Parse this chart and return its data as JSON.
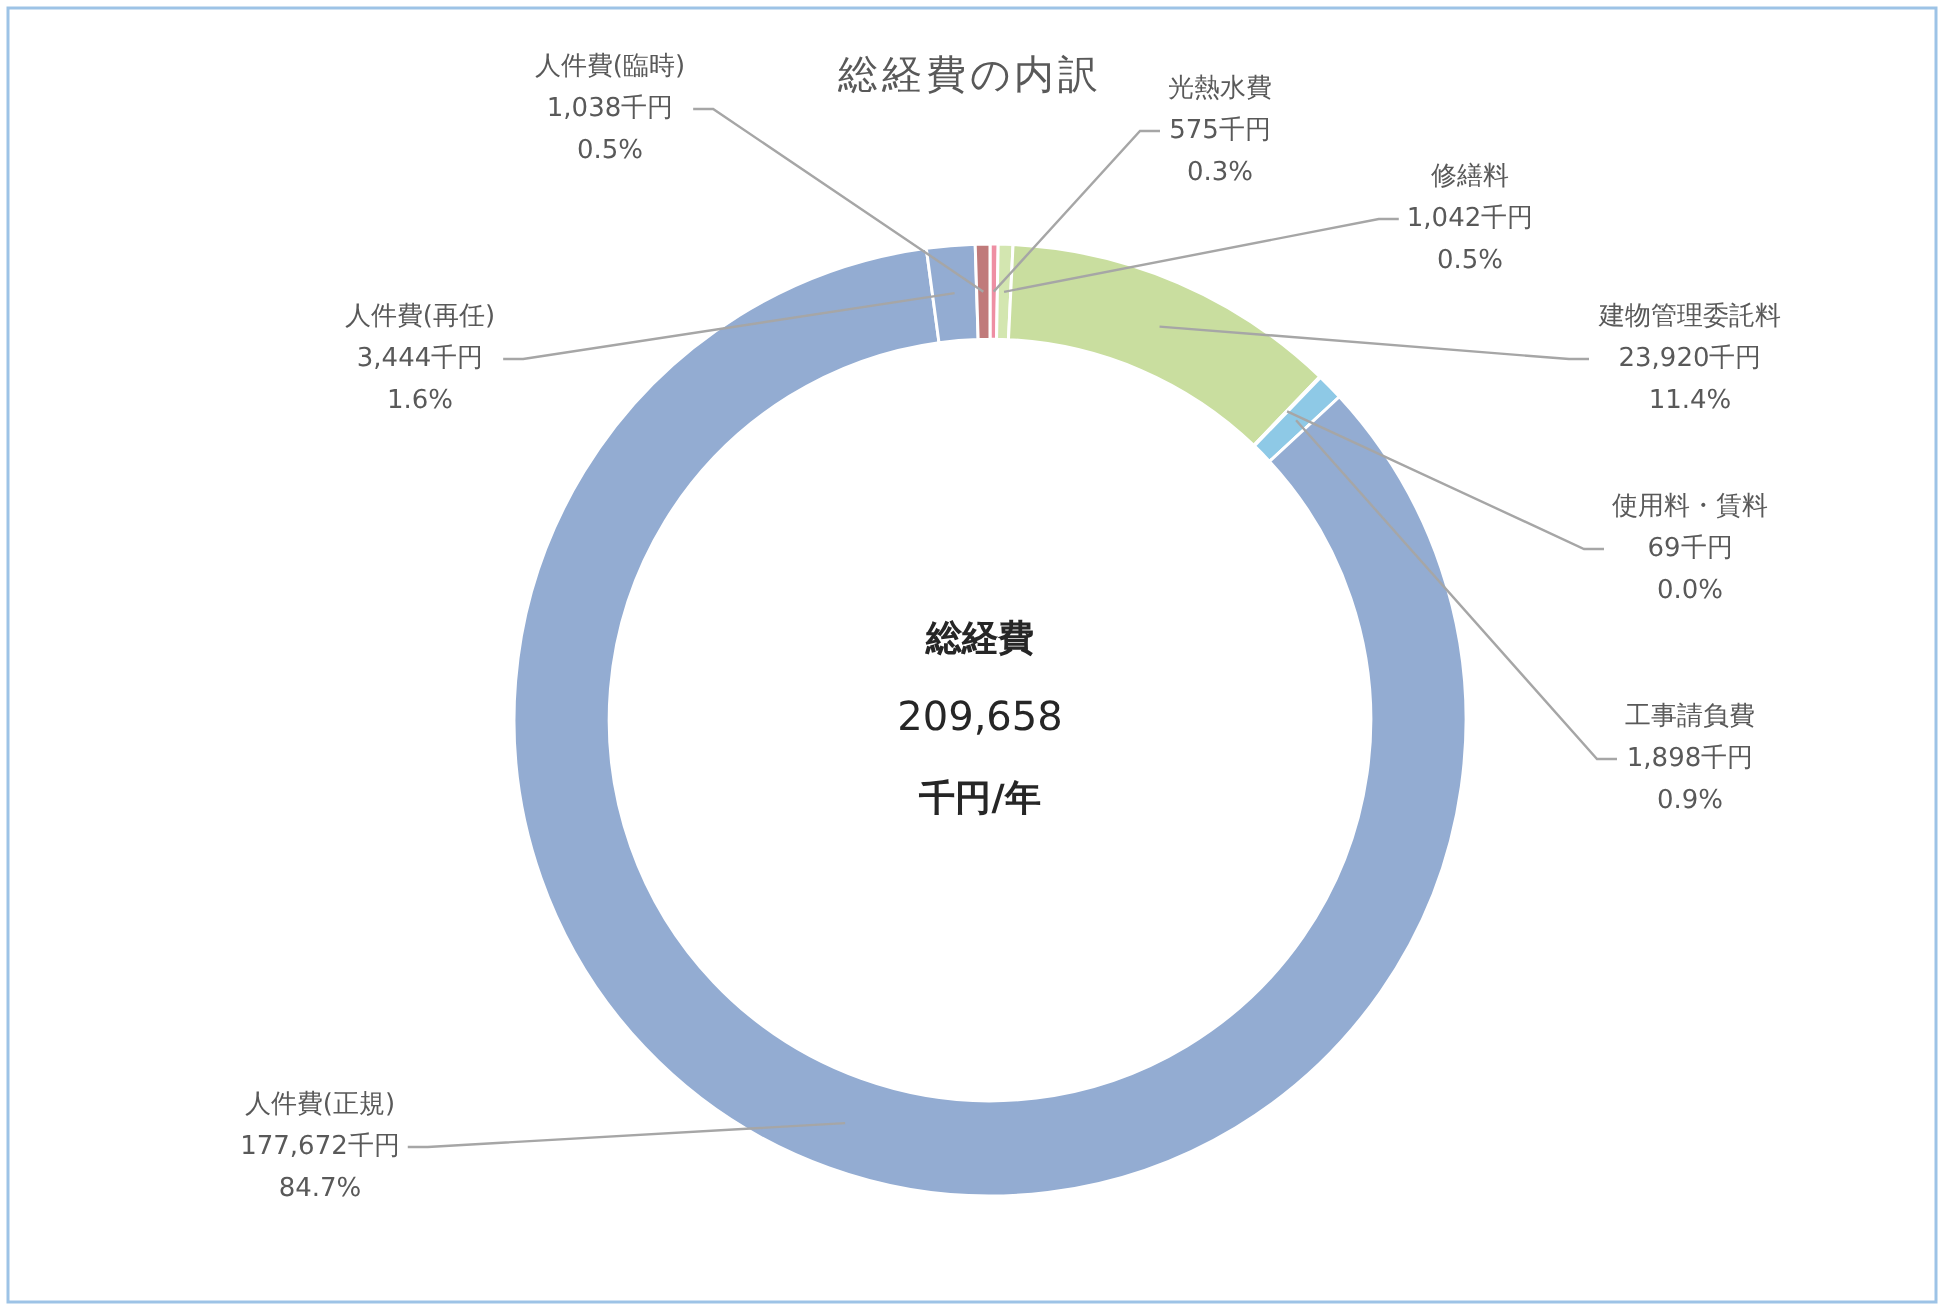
{
  "chart_data": {
    "type": "donut",
    "title": "総経費の内訳",
    "categories": [
      "光熱水費",
      "修繕料",
      "建物管理委託料",
      "使用料・賃料",
      "工事請負費",
      "人件費(正規)",
      "人件費(再任)",
      "人件費(臨時)"
    ],
    "values": [
      575,
      1042,
      23920,
      69,
      1898,
      177672,
      3444,
      1038
    ],
    "colors": [
      "#ee8fa3",
      "#d3e6b0",
      "#c9de9f",
      "#8fd0ea",
      "#8ec9e6",
      "#93acd2",
      "#93acd2",
      "#c07a7a"
    ],
    "value_labels": [
      "575千円\n0.3%",
      "1,042千円\n0.5%",
      "23,920千円\n11.4%",
      "69千円\n0.0%",
      "1,898千円\n0.9%",
      "177,672千円\n84.7%",
      "3,444千円\n1.6%",
      "1,038千円\n0.5%"
    ],
    "annotations": [
      "総経費",
      "209,658",
      "千円/年"
    ]
  }
}
